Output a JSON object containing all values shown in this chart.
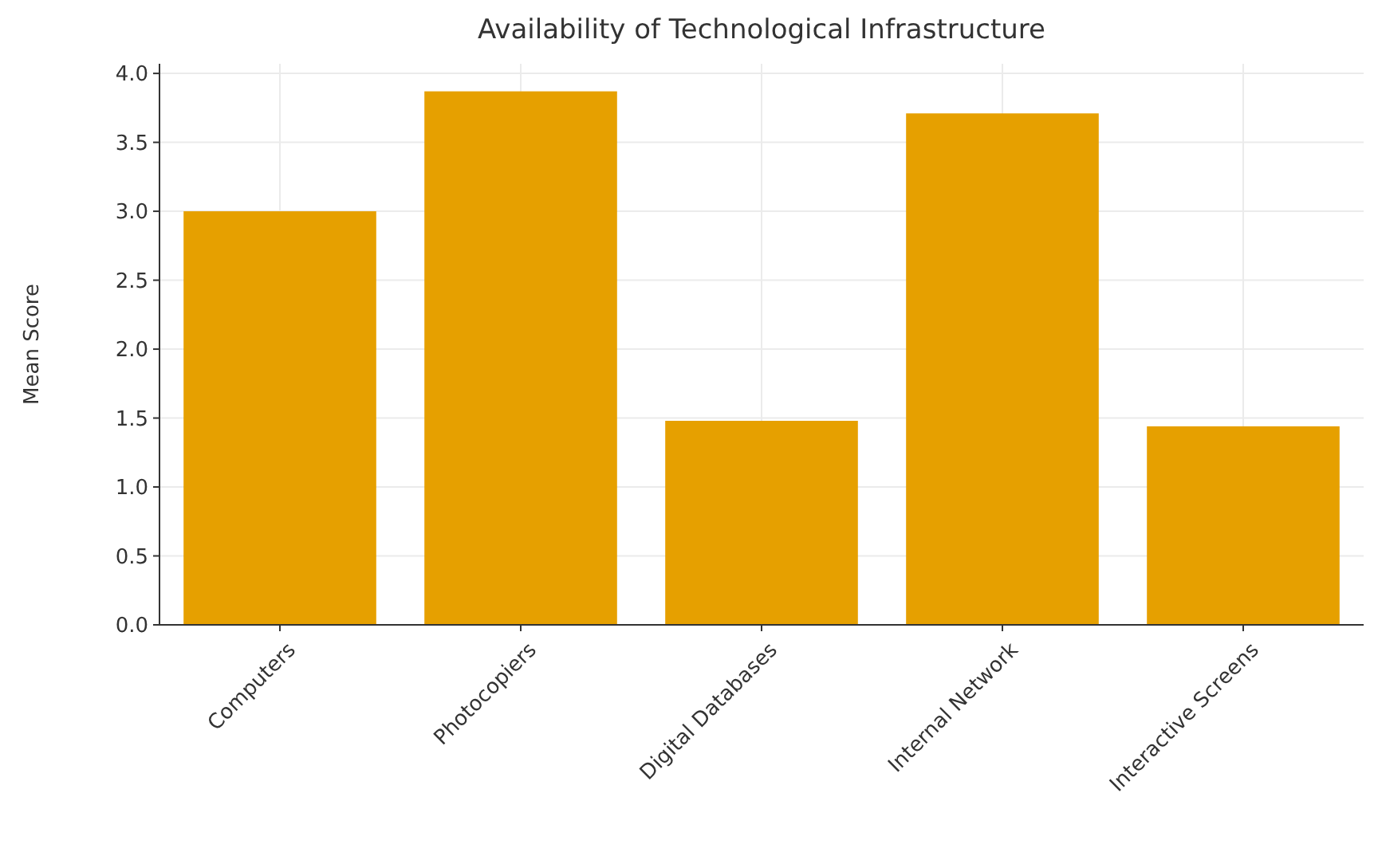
{
  "chart_data": {
    "type": "bar",
    "title": "Availability of Technological Infrastructure",
    "ylabel": "Mean Score",
    "categories": [
      "Computers",
      "Photocopiers",
      "Digital Databases",
      "Internal Network",
      "Interactive Screens"
    ],
    "values": [
      3.0,
      3.87,
      1.48,
      3.71,
      1.44
    ],
    "color": "#e6a000",
    "ylim": [
      0,
      4.07
    ],
    "yticks": [
      {
        "value": 0,
        "label": "0.0"
      },
      {
        "value": 0.5,
        "label": "0.5"
      },
      {
        "value": 1,
        "label": "1.0"
      },
      {
        "value": 1.5,
        "label": "1.5"
      },
      {
        "value": 2,
        "label": "2.0"
      },
      {
        "value": 2.5,
        "label": "2.5"
      },
      {
        "value": 3,
        "label": "3.0"
      },
      {
        "value": 3.5,
        "label": "3.5"
      },
      {
        "value": 4,
        "label": "4.0"
      }
    ],
    "grid": true
  }
}
